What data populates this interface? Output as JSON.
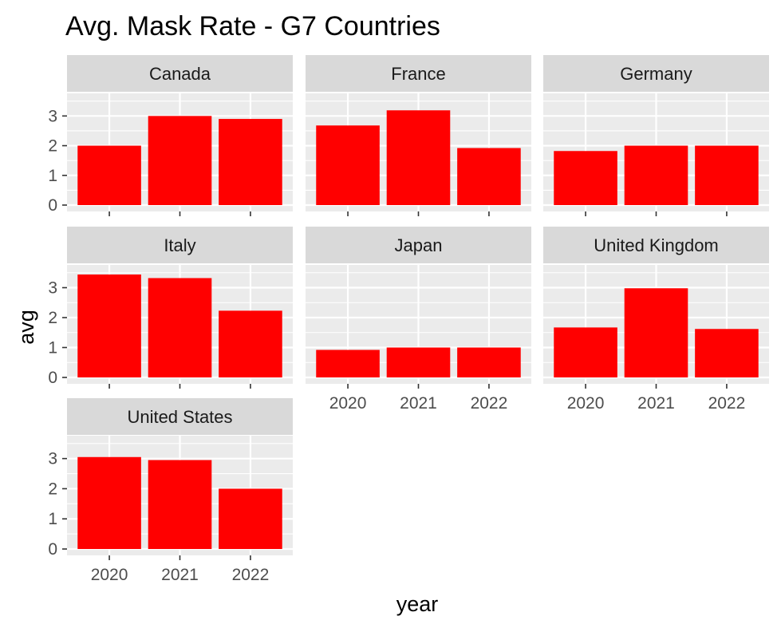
{
  "chart_data": {
    "type": "bar",
    "title": "Avg. Mask Rate - G7 Countries",
    "xlabel": "year",
    "ylabel": "avg",
    "categories": [
      "2020",
      "2021",
      "2022"
    ],
    "ylim": [
      0,
      3.6
    ],
    "yticks": [
      0,
      1,
      2,
      3
    ],
    "bar_color": "#ff0000",
    "panel_bg": "#ebebeb",
    "strip_bg": "#d9d9d9",
    "grid": true,
    "facets": [
      {
        "name": "Canada",
        "values": [
          2.0,
          3.0,
          2.9
        ]
      },
      {
        "name": "France",
        "values": [
          2.68,
          3.19,
          1.92
        ]
      },
      {
        "name": "Germany",
        "values": [
          1.82,
          2.0,
          2.0
        ]
      },
      {
        "name": "Italy",
        "values": [
          3.44,
          3.32,
          2.23
        ]
      },
      {
        "name": "Japan",
        "values": [
          0.92,
          1.0,
          1.0
        ]
      },
      {
        "name": "United Kingdom",
        "values": [
          1.67,
          2.98,
          1.62
        ]
      },
      {
        "name": "United States",
        "values": [
          3.05,
          2.95,
          2.0
        ]
      }
    ]
  }
}
